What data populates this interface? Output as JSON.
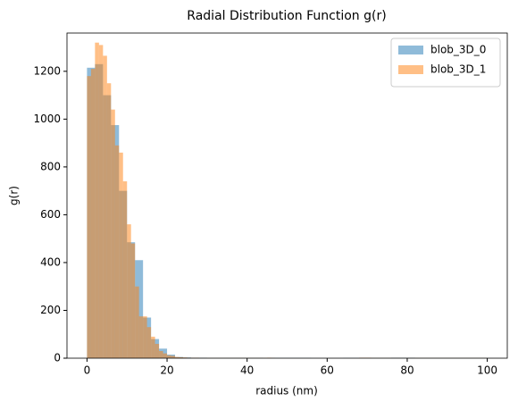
{
  "chart_data": {
    "type": "histogram",
    "title": "Radial Distribution Function g(r)",
    "x_label": "radius (nm)",
    "y_label": "g(r)",
    "xlim": [
      -5,
      105
    ],
    "ylim": [
      0,
      1360
    ],
    "xticks": [
      0,
      20,
      40,
      60,
      80,
      100
    ],
    "yticks": [
      0,
      200,
      400,
      600,
      800,
      1000,
      1200
    ],
    "legend": "upper right",
    "alpha": 0.5,
    "series": [
      {
        "name": "blob_3D_0",
        "color": "#1f77b4",
        "bins": [
          0,
          2,
          4,
          6,
          8,
          10,
          12,
          14,
          16,
          18,
          20,
          22,
          24,
          26,
          28,
          30,
          32,
          34,
          36,
          38,
          40,
          42,
          44,
          46,
          48,
          50,
          52,
          54,
          56,
          58,
          60,
          62,
          64,
          66,
          68,
          70,
          72,
          74,
          76,
          78,
          80,
          82,
          84,
          86,
          88,
          90,
          92,
          94,
          96,
          98,
          100
        ],
        "values": [
          1215,
          1230,
          1100,
          975,
          700,
          485,
          410,
          170,
          80,
          40,
          15,
          5,
          3,
          2,
          2,
          1,
          1,
          1,
          1,
          1,
          1,
          1,
          0,
          1,
          1,
          1,
          1,
          1,
          0,
          0,
          0,
          0,
          1,
          1,
          1,
          1,
          1,
          1,
          2,
          2,
          2,
          1,
          1,
          1,
          1,
          1,
          1,
          1,
          1,
          1
        ]
      },
      {
        "name": "blob_3D_1",
        "color": "#ff7f0e",
        "bins": [
          0,
          1,
          2,
          3,
          4,
          5,
          6,
          7,
          8,
          9,
          10,
          11,
          12,
          13,
          14,
          15,
          16,
          17,
          18,
          19,
          20,
          21,
          22,
          23,
          24,
          25,
          26,
          27,
          28,
          29,
          30,
          31,
          32,
          33,
          34,
          35,
          36,
          37,
          38,
          39,
          40,
          41,
          42,
          43,
          44,
          45,
          46,
          47,
          48,
          49,
          50,
          51,
          52,
          53,
          54,
          55,
          56,
          57,
          58,
          59,
          60,
          61,
          62,
          63,
          64,
          65,
          66,
          67,
          68,
          69,
          70,
          71,
          72,
          73,
          74,
          75,
          76,
          77,
          78,
          79,
          80,
          81,
          82,
          83,
          84,
          85,
          86,
          87,
          88,
          89,
          90,
          91,
          92,
          93,
          94,
          95,
          96,
          97,
          98,
          99,
          100
        ],
        "values": [
          1180,
          1210,
          1320,
          1310,
          1265,
          1150,
          1040,
          890,
          860,
          740,
          560,
          480,
          300,
          175,
          175,
          130,
          90,
          60,
          30,
          20,
          12,
          10,
          5,
          4,
          3,
          2,
          2,
          2,
          1,
          1,
          1,
          1,
          1,
          1,
          1,
          1,
          1,
          1,
          1,
          1,
          1,
          1,
          1,
          1,
          1,
          2,
          1,
          0,
          0,
          0,
          0,
          0,
          0,
          0,
          0,
          0,
          0,
          0,
          0,
          0,
          0,
          0,
          0,
          0,
          0,
          0,
          0,
          0,
          2,
          2,
          2,
          1,
          1,
          1,
          1,
          1,
          1,
          1,
          1,
          1,
          1,
          1,
          1,
          1,
          1,
          1,
          1,
          1,
          1,
          1,
          1,
          1,
          1,
          1,
          1,
          1,
          1,
          1,
          1,
          1
        ]
      }
    ]
  }
}
